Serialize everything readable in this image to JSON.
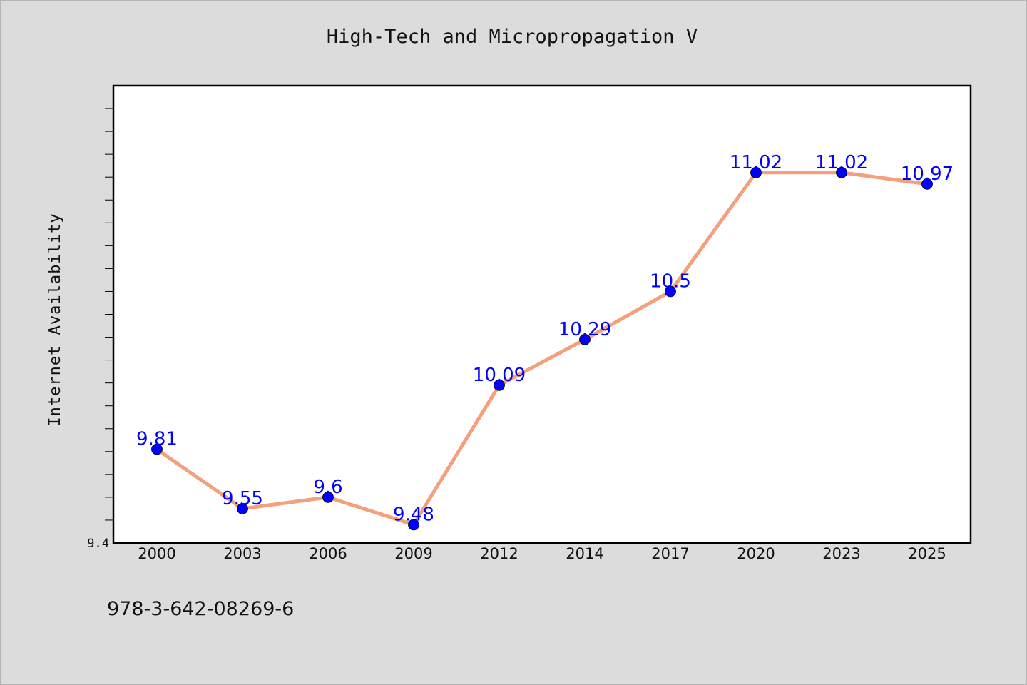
{
  "chart_data": {
    "type": "line",
    "title": "High-Tech and Micropropagation V",
    "xlabel": "",
    "ylabel": "Internet Availability",
    "categories": [
      "2000",
      "2003",
      "2006",
      "2009",
      "2012",
      "2014",
      "2017",
      "2020",
      "2023",
      "2025"
    ],
    "series": [
      {
        "values": [
          9.81,
          9.55,
          9.6,
          9.48,
          10.09,
          10.29,
          10.5,
          11.02,
          11.02,
          10.97
        ],
        "data_labels": [
          "9.81",
          "9.55",
          "9.6",
          "9.48",
          "10.09",
          "10.29",
          "10.5",
          "11.02",
          "11.02",
          "10.97"
        ],
        "line_color": "#f4a07c",
        "marker_color": "#0000ff"
      }
    ],
    "ylim": [
      9.4,
      11.4
    ],
    "yticks_labeled": [
      "9.4"
    ],
    "grid": false,
    "legend": "none",
    "footer": "978-3-642-08269-6",
    "colors": {
      "background": "#dcdcdc",
      "plot_background": "#ffffff",
      "data_label": "#0000ff"
    }
  }
}
